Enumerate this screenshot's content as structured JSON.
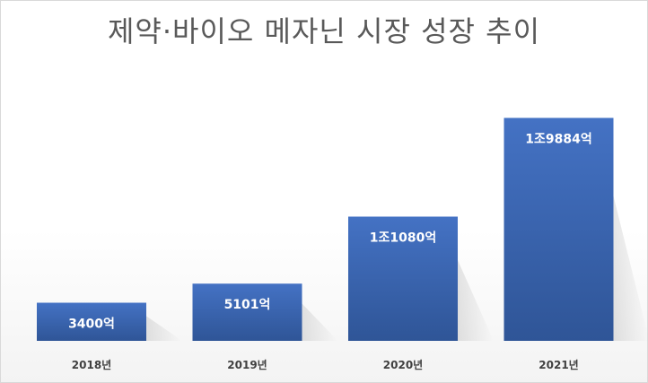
{
  "chart_data": {
    "type": "bar",
    "title": "제약·바이오 메자닌 시장 성장 추이",
    "categories": [
      "2018년",
      "2019년",
      "2020년",
      "2021년"
    ],
    "values": [
      3400,
      5101,
      11080,
      19884
    ],
    "value_unit": "억원",
    "data_labels": [
      "3400억",
      "5101억",
      "1조1080억",
      "1조9884억"
    ],
    "xlabel": "",
    "ylabel": "",
    "ylim": [
      0,
      22000
    ],
    "grid": false,
    "legend": "none",
    "colors": {
      "bar_top": "#4472c4",
      "bar_bottom": "#2f5597",
      "label": "#ffffff",
      "tick": "#404040",
      "title": "#595959"
    }
  }
}
